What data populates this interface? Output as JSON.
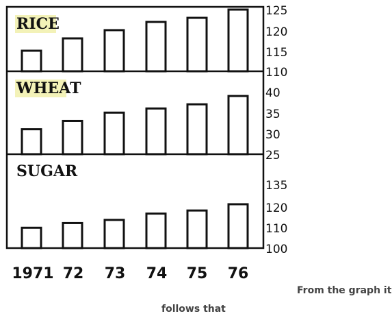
{
  "chart_data": [
    {
      "type": "bar",
      "title": "RICE",
      "title_highlight": "#f3f2b8",
      "categories": [
        "1971",
        "72",
        "73",
        "74",
        "75",
        "76"
      ],
      "values": [
        115,
        118,
        120,
        122,
        123,
        125
      ],
      "ylim": [
        110,
        125
      ],
      "yticks": [
        "110",
        "115",
        "120",
        "125"
      ]
    },
    {
      "type": "bar",
      "title": "WHEAT",
      "title_highlight": "#f3f2b8",
      "categories": [
        "1971",
        "72",
        "73",
        "74",
        "75",
        "76"
      ],
      "values": [
        31,
        33,
        35,
        36,
        37,
        39
      ],
      "ylim": [
        25,
        40
      ],
      "yticks": [
        "25",
        "30",
        "35",
        "40"
      ]
    },
    {
      "type": "bar",
      "title": "SUGAR",
      "categories": [
        "1971",
        "72",
        "73",
        "74",
        "75",
        "76"
      ],
      "values": [
        113,
        116,
        118,
        122,
        124,
        128
      ],
      "ylim": [
        100,
        135
      ],
      "yticks": [
        "100",
        "110",
        "120",
        "135"
      ]
    }
  ],
  "caption": {
    "line1": "From the graph it",
    "line2": "follows that"
  }
}
